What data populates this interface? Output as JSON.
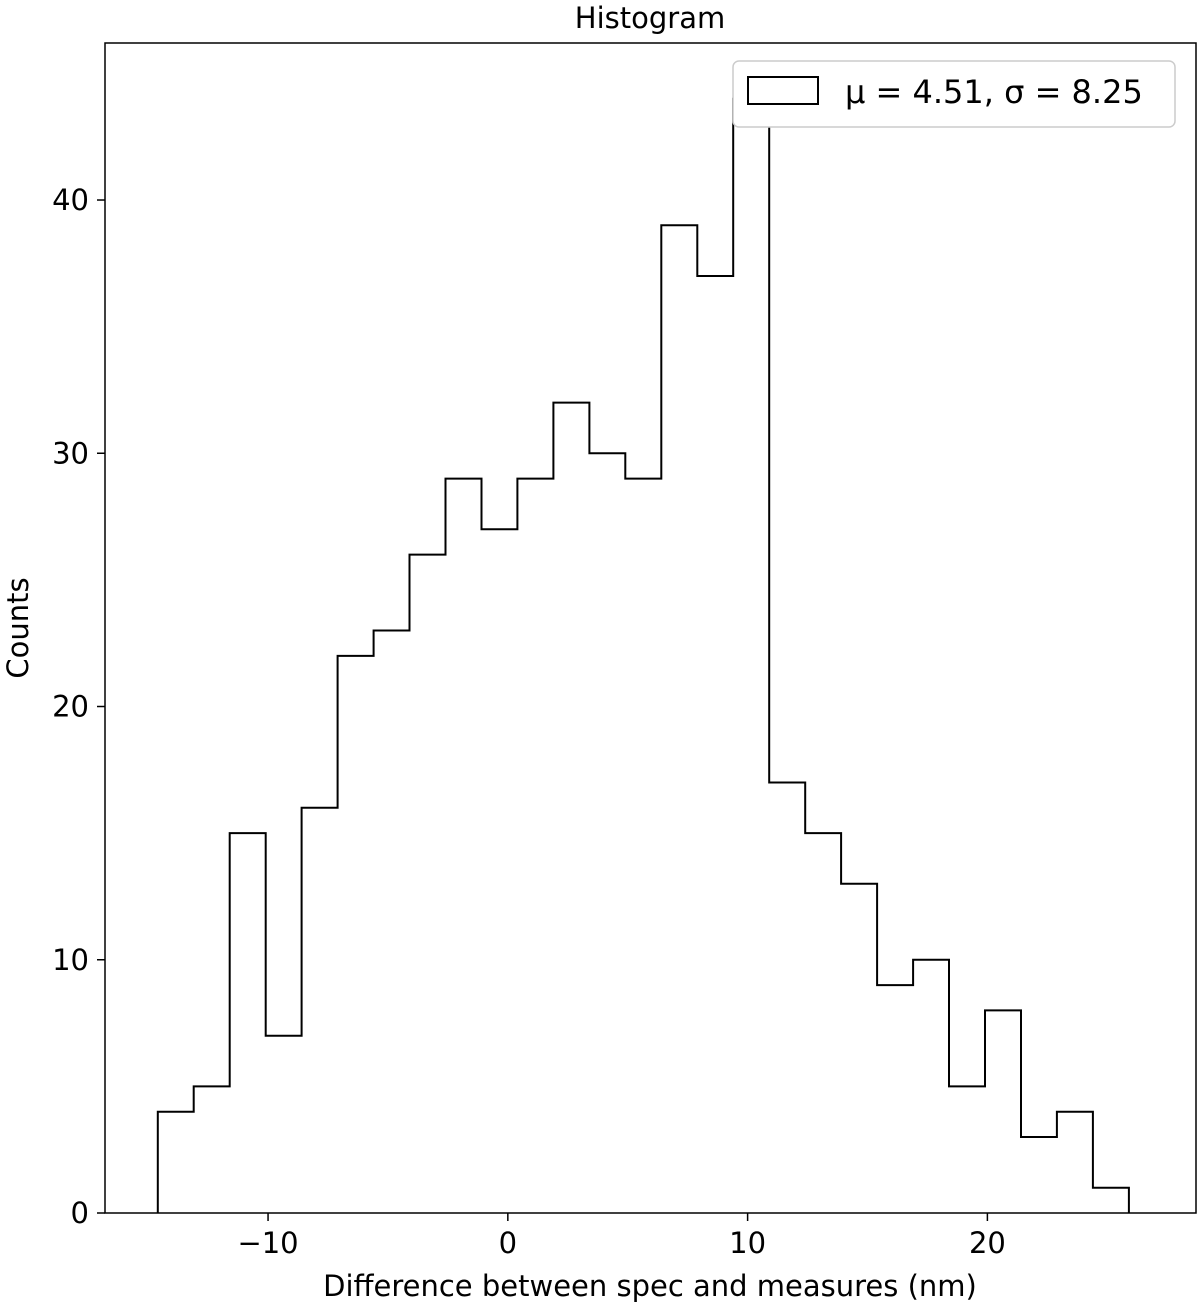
{
  "chart_data": {
    "type": "bar",
    "style": "step-histogram",
    "title": "Histogram",
    "xlabel": "Difference between spec and measures (nm)",
    "ylabel": "Counts",
    "xlim": [
      -16.8,
      28.7
    ],
    "ylim": [
      0,
      46.2
    ],
    "xticks": [
      -10,
      0,
      10,
      20
    ],
    "xtick_labels": [
      "−10",
      "0",
      "10",
      "20"
    ],
    "yticks": [
      0,
      10,
      20,
      30,
      40
    ],
    "ytick_labels": [
      "0",
      "10",
      "20",
      "30",
      "40"
    ],
    "bin_edges": [
      -14.6,
      -13.1,
      -11.6,
      -10.1,
      -8.6,
      -7.1,
      -5.6,
      -4.1,
      -2.6,
      -1.1,
      0.4,
      1.9,
      3.4,
      4.9,
      6.4,
      7.9,
      9.4,
      10.9,
      12.4,
      13.9,
      15.4,
      16.9,
      18.4,
      19.9,
      21.4,
      22.9,
      24.4,
      25.9
    ],
    "counts": [
      4,
      5,
      15,
      7,
      16,
      22,
      23,
      26,
      29,
      27,
      29,
      32,
      30,
      29,
      39,
      37,
      44,
      17,
      15,
      13,
      9,
      10,
      5,
      8,
      3,
      4,
      1
    ],
    "grid": false,
    "legend": {
      "placement": "top-right",
      "entries": [
        "μ = 4.51, σ = 8.25"
      ]
    },
    "colors": {
      "edge": "#000000",
      "fill": "none",
      "background": "#ffffff"
    }
  }
}
